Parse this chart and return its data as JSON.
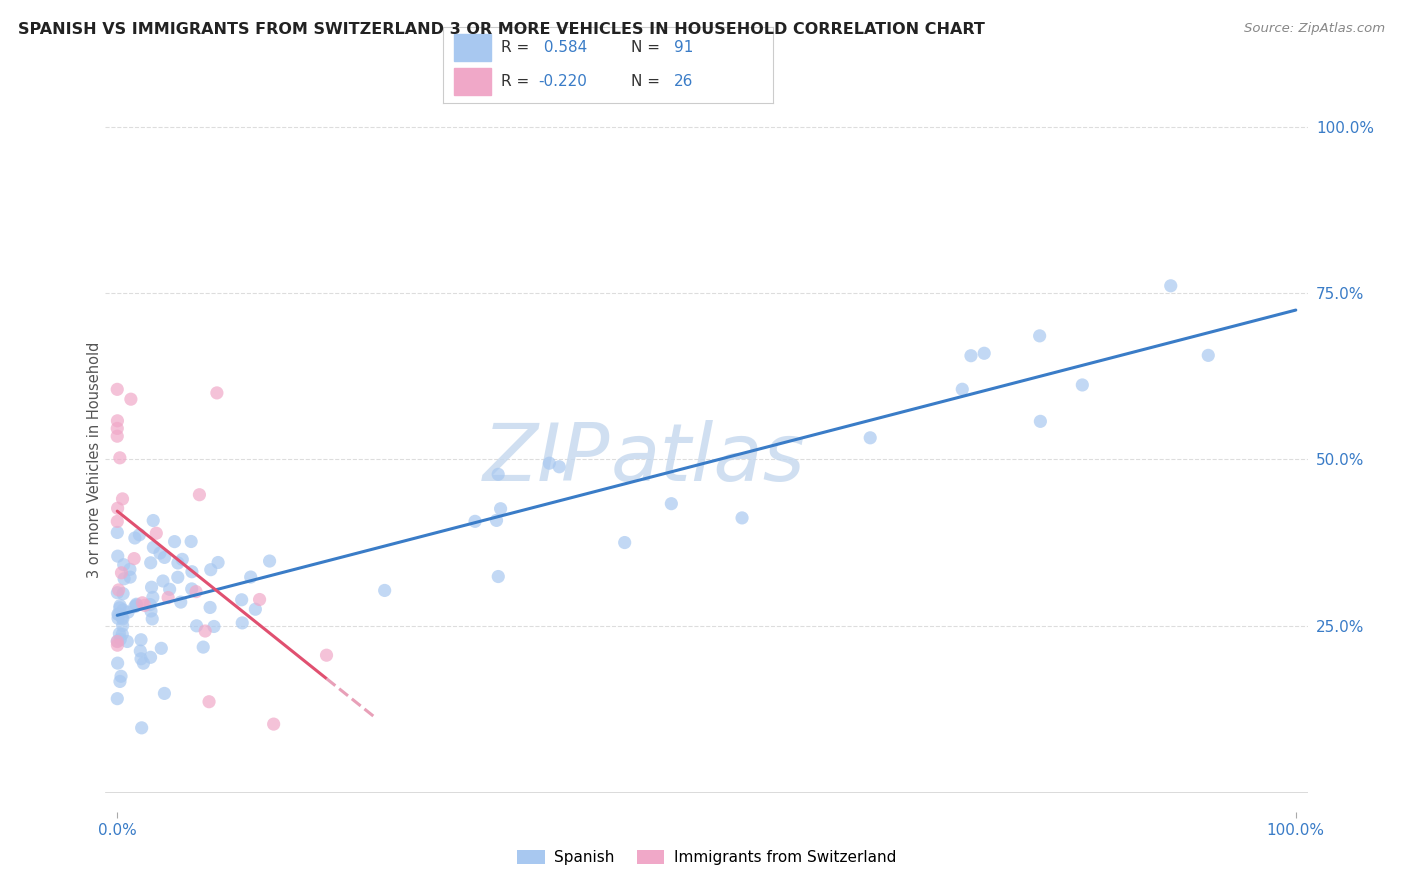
{
  "title": "SPANISH VS IMMIGRANTS FROM SWITZERLAND 3 OR MORE VEHICLES IN HOUSEHOLD CORRELATION CHART",
  "source": "Source: ZipAtlas.com",
  "ylabel": "3 or more Vehicles in Household",
  "watermark_line1": "ZIP",
  "watermark_line2": "atlas",
  "r1": 0.584,
  "n1": 91,
  "r2": -0.22,
  "n2": 26,
  "series1_color": "#a8c8f0",
  "series2_color": "#f0a8c8",
  "line1_color": "#3a7cc7",
  "line2_color": "#e05070",
  "line2_dash_color": "#e8a0b8",
  "title_color": "#222222",
  "source_color": "#888888",
  "tick_color": "#3a7cc7",
  "ylabel_color": "#555555",
  "grid_color": "#dddddd",
  "bg_color": "#ffffff",
  "legend_border_color": "#cccccc",
  "watermark_color": "#c5d8ee",
  "dot_size": 90,
  "dot_alpha": 0.7,
  "line_width": 2.2
}
